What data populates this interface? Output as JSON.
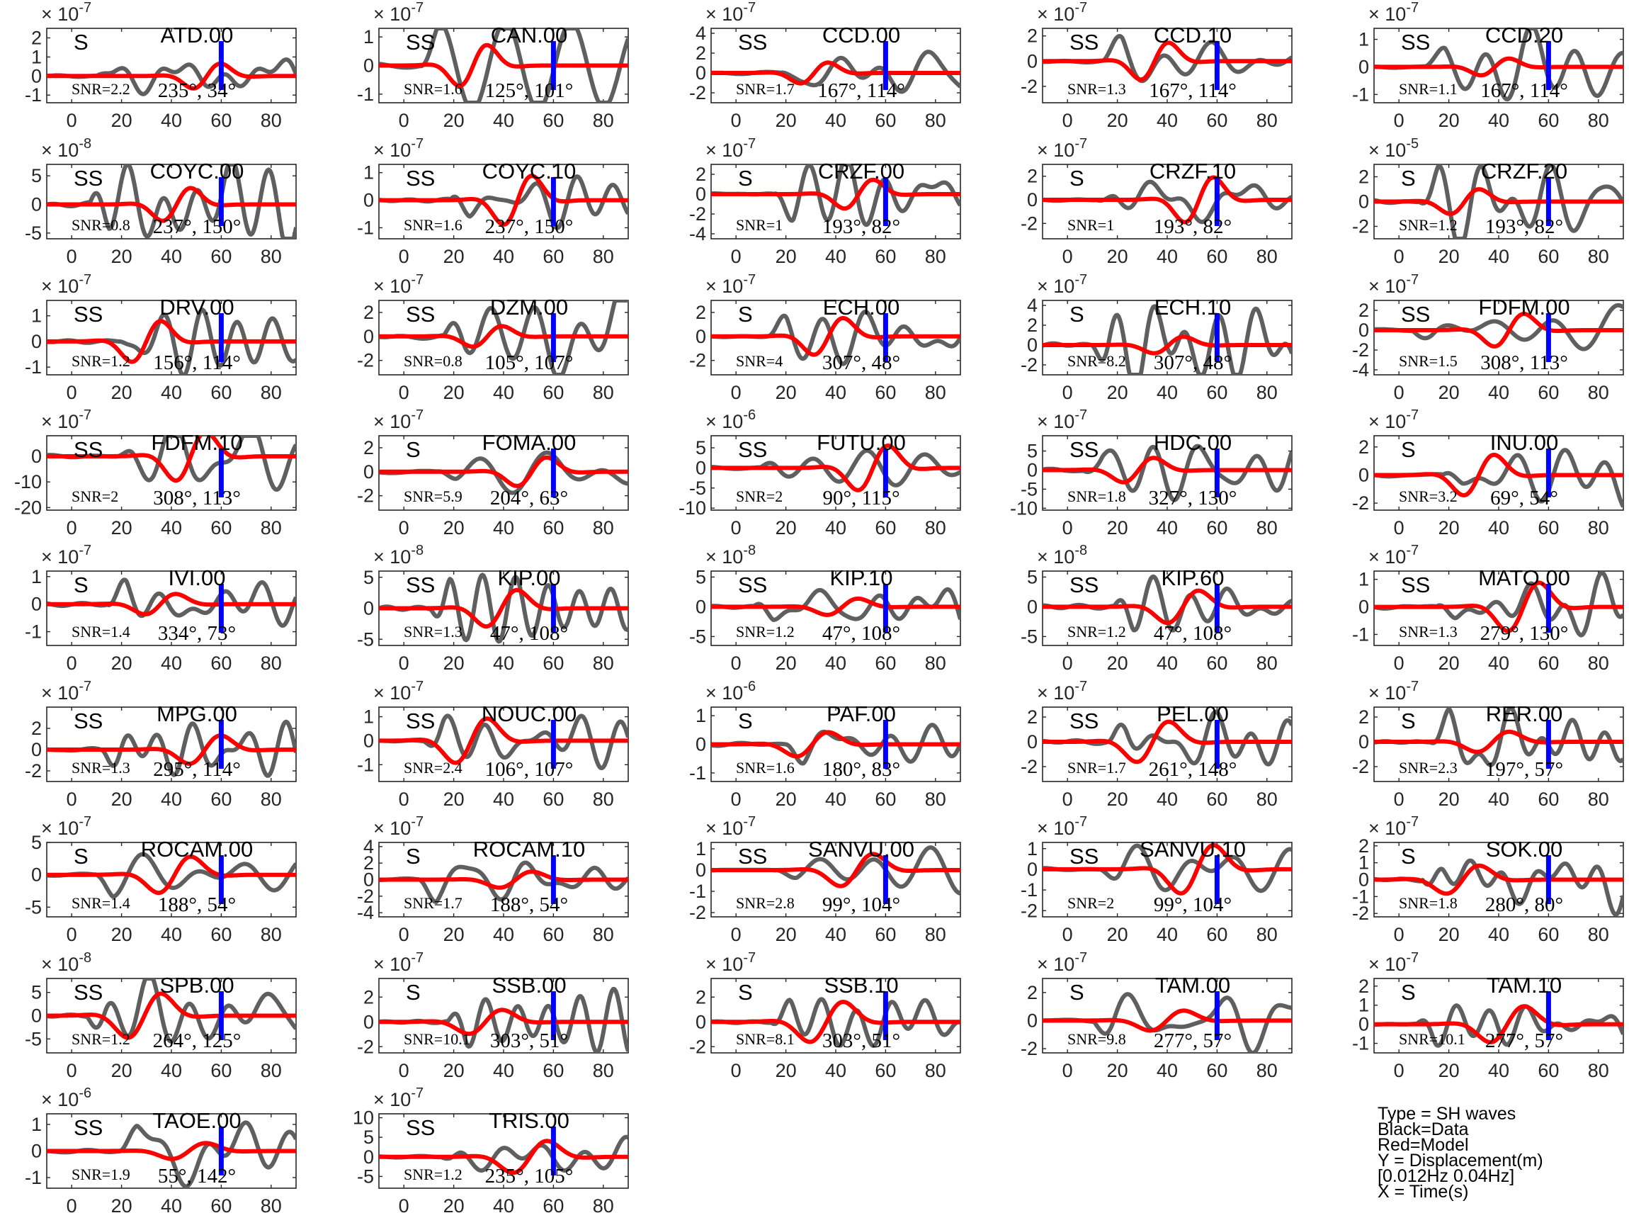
{
  "figure": {
    "legend": [
      "Type = SH waves",
      "Black=Data",
      "Red=Model",
      "Y = Displacement(m)",
      "    [0.012Hz 0.04Hz]",
      "X = Time(s)"
    ],
    "colors": {
      "data": "#5f5f5f",
      "model": "#ff0000",
      "marker": "#0000ff",
      "axes": "#262626"
    }
  },
  "chart_data": [
    {
      "type": "line",
      "station": "ATD.00",
      "phase": "S",
      "snr": "SNR=2.2",
      "az": "235°, 34°",
      "exponent": "-7",
      "yticks": [
        "-1",
        "0",
        "1",
        "2"
      ],
      "ylim": [
        -1.4,
        2.5
      ],
      "xticks": [
        "0",
        "20",
        "40",
        "60",
        "80"
      ],
      "xlim": [
        -10,
        90
      ],
      "marker_x": 60
    },
    {
      "type": "line",
      "station": "CAN.00",
      "phase": "SS",
      "snr": "SNR=1.6",
      "az": "125°, 101°",
      "exponent": "-7",
      "yticks": [
        "-1",
        "0",
        "1"
      ],
      "ylim": [
        -1.3,
        1.3
      ],
      "xticks": [
        "0",
        "20",
        "40",
        "60",
        "80"
      ],
      "xlim": [
        -10,
        90
      ],
      "marker_x": 60
    },
    {
      "type": "line",
      "station": "CCD.00",
      "phase": "SS",
      "snr": "SNR=1.7",
      "az": "167°, 114°",
      "exponent": "-7",
      "yticks": [
        "-2",
        "0",
        "2",
        "4"
      ],
      "ylim": [
        -3,
        4.5
      ],
      "xticks": [
        "0",
        "20",
        "40",
        "60",
        "80"
      ],
      "xlim": [
        -10,
        90
      ],
      "marker_x": 60
    },
    {
      "type": "line",
      "station": "CCD.10",
      "phase": "SS",
      "snr": "SNR=1.3",
      "az": "167°, 114°",
      "exponent": "-7",
      "yticks": [
        "-2",
        "0",
        "2"
      ],
      "ylim": [
        -3.3,
        2.6
      ],
      "xticks": [
        "0",
        "20",
        "40",
        "60",
        "80"
      ],
      "xlim": [
        -10,
        90
      ],
      "marker_x": 60
    },
    {
      "type": "line",
      "station": "CCD.20",
      "phase": "SS",
      "snr": "SNR=1.1",
      "az": "167°, 114°",
      "exponent": "-7",
      "yticks": [
        "-1",
        "0",
        "1"
      ],
      "ylim": [
        -1.3,
        1.4
      ],
      "xticks": [
        "0",
        "20",
        "40",
        "60",
        "80"
      ],
      "xlim": [
        -10,
        90
      ],
      "marker_x": 60
    },
    {
      "type": "line",
      "station": "COYC.00",
      "phase": "SS",
      "snr": "SNR=0.8",
      "az": "237°, 150°",
      "exponent": "-8",
      "yticks": [
        "-5",
        "0",
        "5"
      ],
      "ylim": [
        -6,
        7
      ],
      "xticks": [
        "0",
        "20",
        "40",
        "60",
        "80"
      ],
      "xlim": [
        -10,
        90
      ],
      "marker_x": 60
    },
    {
      "type": "line",
      "station": "COYC.10",
      "phase": "SS",
      "snr": "SNR=1.6",
      "az": "237°, 150°",
      "exponent": "-7",
      "yticks": [
        "-1",
        "0",
        "1"
      ],
      "ylim": [
        -1.4,
        1.3
      ],
      "xticks": [
        "0",
        "20",
        "40",
        "60",
        "80"
      ],
      "xlim": [
        -10,
        90
      ],
      "marker_x": 60
    },
    {
      "type": "line",
      "station": "CRZF.00",
      "phase": "S",
      "snr": "SNR=1",
      "az": "193°, 82°",
      "exponent": "-7",
      "yticks": [
        "-4",
        "-2",
        "0",
        "2"
      ],
      "ylim": [
        -4.5,
        3
      ],
      "xticks": [
        "0",
        "20",
        "40",
        "60",
        "80"
      ],
      "xlim": [
        -10,
        90
      ],
      "marker_x": 60
    },
    {
      "type": "line",
      "station": "CRZF.10",
      "phase": "S",
      "snr": "SNR=1",
      "az": "193°, 82°",
      "exponent": "-7",
      "yticks": [
        "-2",
        "0",
        "2"
      ],
      "ylim": [
        -3.3,
        3
      ],
      "xticks": [
        "0",
        "20",
        "40",
        "60",
        "80"
      ],
      "xlim": [
        -10,
        90
      ],
      "marker_x": 60
    },
    {
      "type": "line",
      "station": "CRZF.20",
      "phase": "S",
      "snr": "SNR=1.2",
      "az": "193°, 82°",
      "exponent": "-5",
      "yticks": [
        "-2",
        "0",
        "2"
      ],
      "ylim": [
        -3,
        3
      ],
      "xticks": [
        "0",
        "20",
        "40",
        "60",
        "80"
      ],
      "xlim": [
        -10,
        90
      ],
      "marker_x": 60
    },
    {
      "type": "line",
      "station": "DRV.00",
      "phase": "SS",
      "snr": "SNR=1.2",
      "az": "156°, 114°",
      "exponent": "-7",
      "yticks": [
        "-1",
        "0",
        "1"
      ],
      "ylim": [
        -1.3,
        1.6
      ],
      "xticks": [
        "0",
        "20",
        "40",
        "60",
        "80"
      ],
      "xlim": [
        -10,
        90
      ],
      "marker_x": 60
    },
    {
      "type": "line",
      "station": "DZM.00",
      "phase": "SS",
      "snr": "SNR=0.8",
      "az": "105°, 107°",
      "exponent": "-7",
      "yticks": [
        "-2",
        "0",
        "2"
      ],
      "ylim": [
        -3.2,
        3
      ],
      "xticks": [
        "0",
        "20",
        "40",
        "60",
        "80"
      ],
      "xlim": [
        -10,
        90
      ],
      "marker_x": 60
    },
    {
      "type": "line",
      "station": "ECH.00",
      "phase": "S",
      "snr": "SNR=4",
      "az": "307°, 48°",
      "exponent": "-7",
      "yticks": [
        "-2",
        "0",
        "2"
      ],
      "ylim": [
        -3.2,
        3
      ],
      "xticks": [
        "0",
        "20",
        "40",
        "60",
        "80"
      ],
      "xlim": [
        -10,
        90
      ],
      "marker_x": 60
    },
    {
      "type": "line",
      "station": "ECH.10",
      "phase": "S",
      "snr": "SNR=8.2",
      "az": "307°, 48°",
      "exponent": "-7",
      "yticks": [
        "-2",
        "0",
        "2",
        "4"
      ],
      "ylim": [
        -3,
        4.5
      ],
      "xticks": [
        "0",
        "20",
        "40",
        "60",
        "80"
      ],
      "xlim": [
        -10,
        90
      ],
      "marker_x": 60
    },
    {
      "type": "line",
      "station": "FDFM.00",
      "phase": "SS",
      "snr": "SNR=1.5",
      "az": "308°, 113°",
      "exponent": "-7",
      "yticks": [
        "-4",
        "-2",
        "0",
        "2"
      ],
      "ylim": [
        -4.5,
        3
      ],
      "xticks": [
        "0",
        "20",
        "40",
        "60",
        "80"
      ],
      "xlim": [
        -10,
        90
      ],
      "marker_x": 60
    },
    {
      "type": "line",
      "station": "FDFM.10",
      "phase": "SS",
      "snr": "SNR=2",
      "az": "308°, 113°",
      "exponent": "-7",
      "yticks": [
        "-20",
        "-10",
        "0"
      ],
      "ylim": [
        -21,
        8
      ],
      "xticks": [
        "0",
        "20",
        "40",
        "60",
        "80"
      ],
      "xlim": [
        -10,
        90
      ],
      "marker_x": 60
    },
    {
      "type": "line",
      "station": "FOMA.00",
      "phase": "S",
      "snr": "SNR=5.9",
      "az": "204°, 63°",
      "exponent": "-7",
      "yticks": [
        "-2",
        "0",
        "2"
      ],
      "ylim": [
        -3.2,
        3
      ],
      "xticks": [
        "0",
        "20",
        "40",
        "60",
        "80"
      ],
      "xlim": [
        -10,
        90
      ],
      "marker_x": 60
    },
    {
      "type": "line",
      "station": "FUTU.00",
      "phase": "SS",
      "snr": "SNR=2",
      "az": "90°, 115°",
      "exponent": "-6",
      "yticks": [
        "-10",
        "-5",
        "0",
        "5"
      ],
      "ylim": [
        -10.5,
        8
      ],
      "xticks": [
        "0",
        "20",
        "40",
        "60",
        "80"
      ],
      "xlim": [
        -10,
        90
      ],
      "marker_x": 60
    },
    {
      "type": "line",
      "station": "HDC.00",
      "phase": "SS",
      "snr": "SNR=1.8",
      "az": "327°, 130°",
      "exponent": "-7",
      "yticks": [
        "-10",
        "-5",
        "0",
        "5"
      ],
      "ylim": [
        -10.5,
        9
      ],
      "xticks": [
        "0",
        "20",
        "40",
        "60",
        "80"
      ],
      "xlim": [
        -10,
        90
      ],
      "marker_x": 60
    },
    {
      "type": "line",
      "station": "INU.00",
      "phase": "S",
      "snr": "SNR=3.2",
      "az": "69°, 54°",
      "exponent": "-7",
      "yticks": [
        "-2",
        "0",
        "2"
      ],
      "ylim": [
        -2.5,
        2.8
      ],
      "xticks": [
        "0",
        "20",
        "40",
        "60",
        "80"
      ],
      "xlim": [
        -10,
        90
      ],
      "marker_x": 60
    },
    {
      "type": "line",
      "station": "IVI.00",
      "phase": "S",
      "snr": "SNR=1.4",
      "az": "334°, 73°",
      "exponent": "-7",
      "yticks": [
        "-1",
        "0",
        "1"
      ],
      "ylim": [
        -1.5,
        1.2
      ],
      "xticks": [
        "0",
        "20",
        "40",
        "60",
        "80"
      ],
      "xlim": [
        -10,
        90
      ],
      "marker_x": 60
    },
    {
      "type": "line",
      "station": "KIP.00",
      "phase": "SS",
      "snr": "SNR=1.3",
      "az": "47°, 108°",
      "exponent": "-8",
      "yticks": [
        "-5",
        "0",
        "5"
      ],
      "ylim": [
        -6,
        6
      ],
      "xticks": [
        "0",
        "20",
        "40",
        "60",
        "80"
      ],
      "xlim": [
        -10,
        90
      ],
      "marker_x": 60
    },
    {
      "type": "line",
      "station": "KIP.10",
      "phase": "SS",
      "snr": "SNR=1.2",
      "az": "47°, 108°",
      "exponent": "-8",
      "yticks": [
        "-5",
        "0",
        "5"
      ],
      "ylim": [
        -6.5,
        6
      ],
      "xticks": [
        "0",
        "20",
        "40",
        "60",
        "80"
      ],
      "xlim": [
        -10,
        90
      ],
      "marker_x": 60
    },
    {
      "type": "line",
      "station": "KIP.60",
      "phase": "SS",
      "snr": "SNR=1.2",
      "az": "47°, 108°",
      "exponent": "-8",
      "yticks": [
        "-5",
        "0",
        "5"
      ],
      "ylim": [
        -6.5,
        6
      ],
      "xticks": [
        "0",
        "20",
        "40",
        "60",
        "80"
      ],
      "xlim": [
        -10,
        90
      ],
      "marker_x": 60
    },
    {
      "type": "line",
      "station": "MATO.00",
      "phase": "SS",
      "snr": "SNR=1.3",
      "az": "279°, 130°",
      "exponent": "-7",
      "yticks": [
        "-1",
        "0",
        "1"
      ],
      "ylim": [
        -1.4,
        1.3
      ],
      "xticks": [
        "0",
        "20",
        "40",
        "60",
        "80"
      ],
      "xlim": [
        -10,
        90
      ],
      "marker_x": 60
    },
    {
      "type": "line",
      "station": "MPG.00",
      "phase": "SS",
      "snr": "SNR=1.3",
      "az": "295°, 114°",
      "exponent": "-7",
      "yticks": [
        "-2",
        "0",
        "2"
      ],
      "ylim": [
        -3,
        4
      ],
      "xticks": [
        "0",
        "20",
        "40",
        "60",
        "80"
      ],
      "xlim": [
        -10,
        90
      ],
      "marker_x": 60
    },
    {
      "type": "line",
      "station": "NOUC.00",
      "phase": "SS",
      "snr": "SNR=2.4",
      "az": "106°, 107°",
      "exponent": "-7",
      "yticks": [
        "-1",
        "0",
        "1"
      ],
      "ylim": [
        -1.7,
        1.4
      ],
      "xticks": [
        "0",
        "20",
        "40",
        "60",
        "80"
      ],
      "xlim": [
        -10,
        90
      ],
      "marker_x": 60
    },
    {
      "type": "line",
      "station": "PAF.00",
      "phase": "S",
      "snr": "SNR=1.6",
      "az": "180°, 83°",
      "exponent": "-6",
      "yticks": [
        "-1",
        "0",
        "1"
      ],
      "ylim": [
        -1.3,
        1.3
      ],
      "xticks": [
        "0",
        "20",
        "40",
        "60",
        "80"
      ],
      "xlim": [
        -10,
        90
      ],
      "marker_x": 60
    },
    {
      "type": "line",
      "station": "PEL.00",
      "phase": "SS",
      "snr": "SNR=1.7",
      "az": "261°, 148°",
      "exponent": "-7",
      "yticks": [
        "-2",
        "0",
        "2"
      ],
      "ylim": [
        -3.2,
        2.8
      ],
      "xticks": [
        "0",
        "20",
        "40",
        "60",
        "80"
      ],
      "xlim": [
        -10,
        90
      ],
      "marker_x": 60
    },
    {
      "type": "line",
      "station": "RER.00",
      "phase": "S",
      "snr": "SNR=2.3",
      "az": "197°, 57°",
      "exponent": "-7",
      "yticks": [
        "-2",
        "0",
        "2"
      ],
      "ylim": [
        -3.2,
        2.8
      ],
      "xticks": [
        "0",
        "20",
        "40",
        "60",
        "80"
      ],
      "xlim": [
        -10,
        90
      ],
      "marker_x": 60
    },
    {
      "type": "line",
      "station": "ROCAM.00",
      "phase": "S",
      "snr": "SNR=1.4",
      "az": "188°, 54°",
      "exponent": "-7",
      "yticks": [
        "-5",
        "0",
        "5"
      ],
      "ylim": [
        -6.5,
        5
      ],
      "xticks": [
        "0",
        "20",
        "40",
        "60",
        "80"
      ],
      "xlim": [
        -10,
        90
      ],
      "marker_x": 60
    },
    {
      "type": "line",
      "station": "ROCAM.10",
      "phase": "S",
      "snr": "SNR=1.7",
      "az": "188°, 54°",
      "exponent": "-7",
      "yticks": [
        "-4",
        "-2",
        "0",
        "2",
        "4"
      ],
      "ylim": [
        -4.5,
        4.5
      ],
      "xticks": [
        "0",
        "20",
        "40",
        "60",
        "80"
      ],
      "xlim": [
        -10,
        90
      ],
      "marker_x": 60
    },
    {
      "type": "line",
      "station": "SANVU.00",
      "phase": "SS",
      "snr": "SNR=2.8",
      "az": "99°, 104°",
      "exponent": "-7",
      "yticks": [
        "-2",
        "-1",
        "0",
        "1"
      ],
      "ylim": [
        -2.2,
        1.3
      ],
      "xticks": [
        "0",
        "20",
        "40",
        "60",
        "80"
      ],
      "xlim": [
        -10,
        90
      ],
      "marker_x": 60
    },
    {
      "type": "line",
      "station": "SANVU.10",
      "phase": "SS",
      "snr": "SNR=2",
      "az": "99°, 104°",
      "exponent": "-7",
      "yticks": [
        "-2",
        "-1",
        "0",
        "1"
      ],
      "ylim": [
        -2.3,
        1.3
      ],
      "xticks": [
        "0",
        "20",
        "40",
        "60",
        "80"
      ],
      "xlim": [
        -10,
        90
      ],
      "marker_x": 60
    },
    {
      "type": "line",
      "station": "SOK.00",
      "phase": "S",
      "snr": "SNR=1.8",
      "az": "280°, 80°",
      "exponent": "-7",
      "yticks": [
        "-2",
        "-1",
        "0",
        "1",
        "2"
      ],
      "ylim": [
        -2.2,
        2.2
      ],
      "xticks": [
        "0",
        "20",
        "40",
        "60",
        "80"
      ],
      "xlim": [
        -10,
        90
      ],
      "marker_x": 60
    },
    {
      "type": "line",
      "station": "SPB.00",
      "phase": "SS",
      "snr": "SNR=1.2",
      "az": "264°, 125°",
      "exponent": "-8",
      "yticks": [
        "-5",
        "0",
        "5"
      ],
      "ylim": [
        -8,
        8
      ],
      "xticks": [
        "0",
        "20",
        "40",
        "60",
        "80"
      ],
      "xlim": [
        -10,
        90
      ],
      "marker_x": 60
    },
    {
      "type": "line",
      "station": "SSB.00",
      "phase": "S",
      "snr": "SNR=10.1",
      "az": "303°, 51°",
      "exponent": "-7",
      "yticks": [
        "-2",
        "0",
        "2"
      ],
      "ylim": [
        -2.5,
        3.5
      ],
      "xticks": [
        "0",
        "20",
        "40",
        "60",
        "80"
      ],
      "xlim": [
        -10,
        90
      ],
      "marker_x": 60
    },
    {
      "type": "line",
      "station": "SSB.10",
      "phase": "S",
      "snr": "SNR=8.1",
      "az": "303°, 51°",
      "exponent": "-7",
      "yticks": [
        "-2",
        "0",
        "2"
      ],
      "ylim": [
        -2.5,
        3.5
      ],
      "xticks": [
        "0",
        "20",
        "40",
        "60",
        "80"
      ],
      "xlim": [
        -10,
        90
      ],
      "marker_x": 60
    },
    {
      "type": "line",
      "station": "TAM.00",
      "phase": "S",
      "snr": "SNR=9.8",
      "az": "277°, 57°",
      "exponent": "-7",
      "yticks": [
        "-2",
        "0",
        "2"
      ],
      "ylim": [
        -2.3,
        3
      ],
      "xticks": [
        "0",
        "20",
        "40",
        "60",
        "80"
      ],
      "xlim": [
        -10,
        90
      ],
      "marker_x": 60
    },
    {
      "type": "line",
      "station": "TAM.10",
      "phase": "S",
      "snr": "SNR=10.1",
      "az": "277°, 57°",
      "exponent": "-7",
      "yticks": [
        "-1",
        "0",
        "1",
        "2"
      ],
      "ylim": [
        -1.5,
        2.4
      ],
      "xticks": [
        "0",
        "20",
        "40",
        "60",
        "80"
      ],
      "xlim": [
        -10,
        90
      ],
      "marker_x": 60
    },
    {
      "type": "line",
      "station": "TAOE.00",
      "phase": "SS",
      "snr": "SNR=1.9",
      "az": "55°, 142°",
      "exponent": "-6",
      "yticks": [
        "-1",
        "0",
        "1"
      ],
      "ylim": [
        -1.4,
        1.4
      ],
      "xticks": [
        "0",
        "20",
        "40",
        "60",
        "80"
      ],
      "xlim": [
        -10,
        90
      ],
      "marker_x": 60
    },
    {
      "type": "line",
      "station": "TRIS.00",
      "phase": "SS",
      "snr": "SNR=1.2",
      "az": "235°, 105°",
      "exponent": "-7",
      "yticks": [
        "-5",
        "0",
        "5",
        "10"
      ],
      "ylim": [
        -8,
        11
      ],
      "xticks": [
        "0",
        "20",
        "40",
        "60",
        "80"
      ],
      "xlim": [
        -10,
        90
      ],
      "marker_x": 60
    }
  ]
}
